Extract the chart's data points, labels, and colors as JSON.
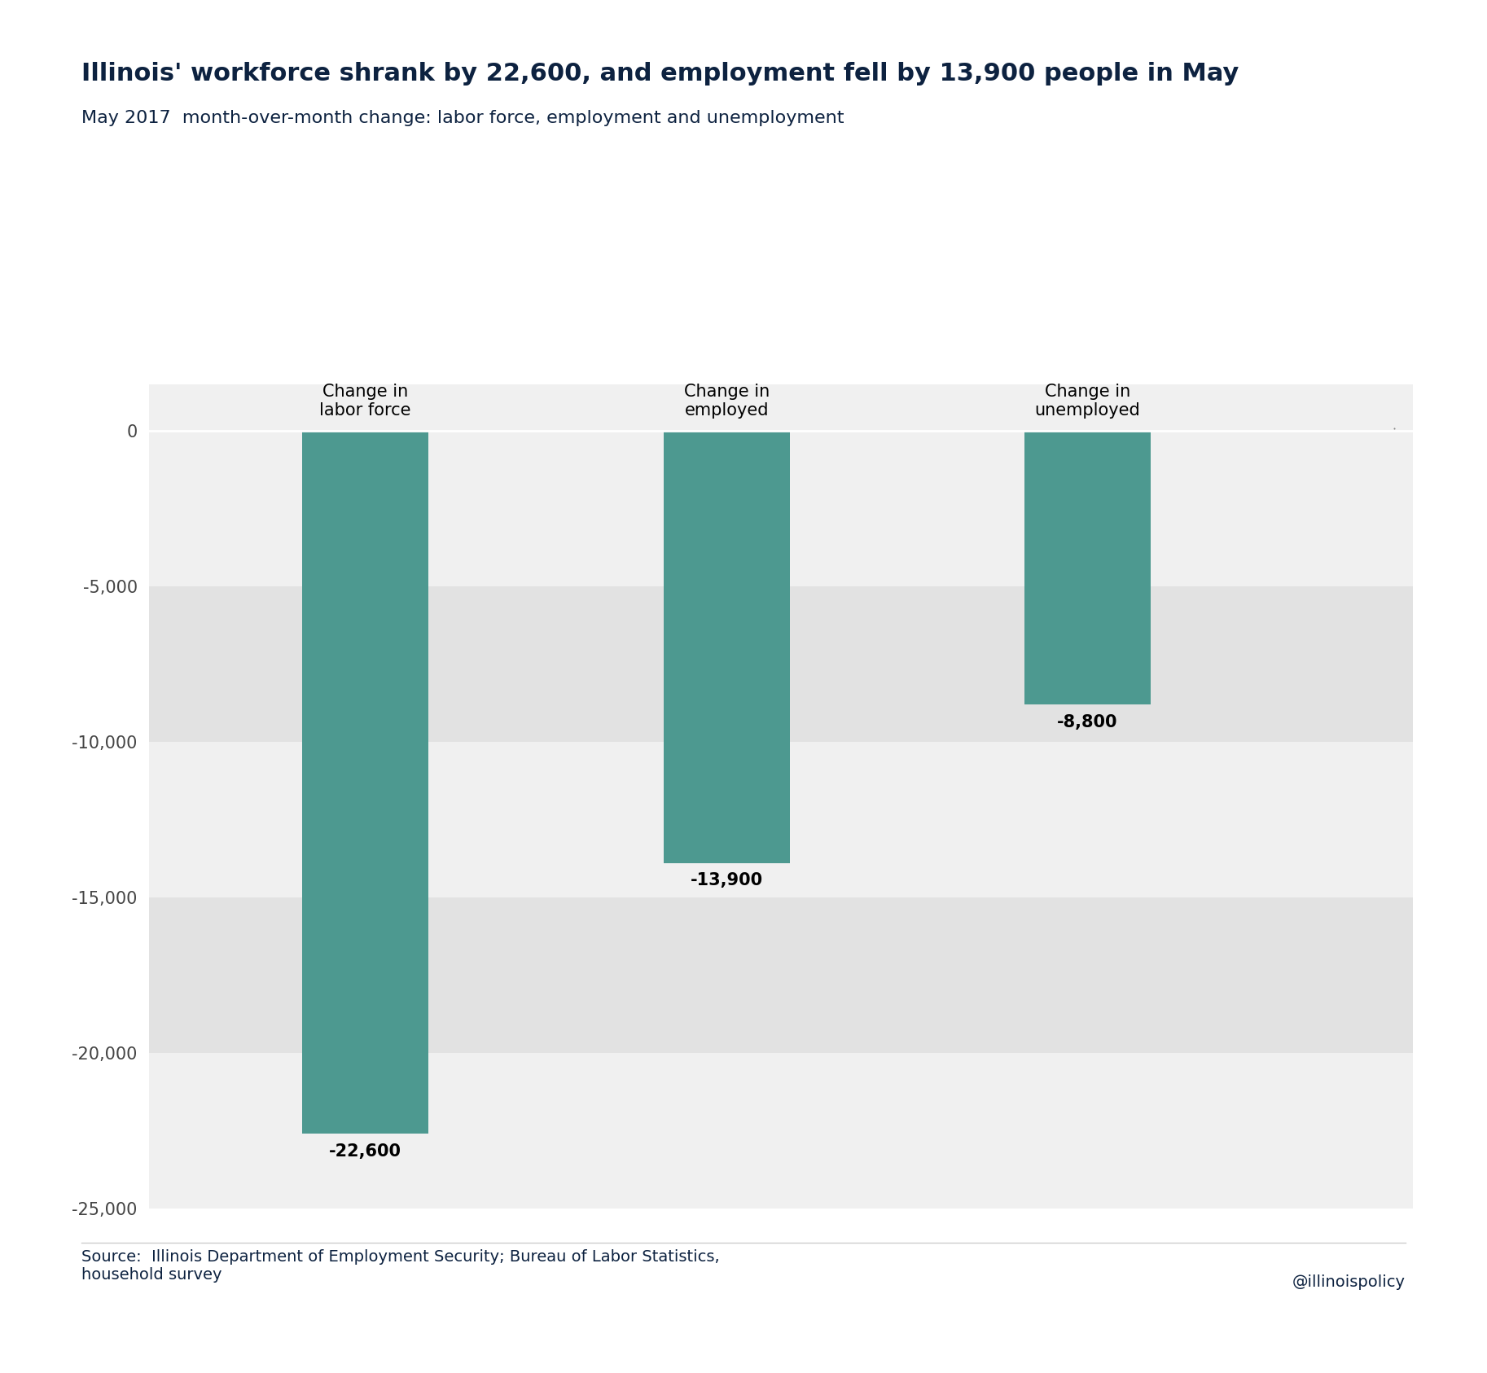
{
  "title": "Illinois' workforce shrank by 22,600, and employment fell by 13,900 people in May",
  "subtitle": "May 2017  month-over-month change: labor force, employment and unemployment",
  "categories": [
    "Change in\nlabor force",
    "Change in\nemployed",
    "Change in\nunemployed"
  ],
  "values": [
    -22600,
    -13900,
    -8800
  ],
  "bar_color": "#4d9990",
  "bar_labels": [
    "-22,600",
    "-13,900",
    "-8,800"
  ],
  "ylim": [
    -25000,
    0
  ],
  "yticks": [
    0,
    -5000,
    -10000,
    -15000,
    -20000,
    -25000
  ],
  "ytick_labels": [
    "0",
    "-5,000",
    "-10,000",
    "-15,000",
    "-20,000",
    "-25,000"
  ],
  "title_color": "#0d2240",
  "subtitle_color": "#0d2240",
  "source_text": "Source:  Illinois Department of Employment Security; Bureau of Labor Statistics,\nhousehold survey",
  "credit_text": "@illinoispolicy",
  "background_color": "#ffffff",
  "plot_bg_color": "#f0f0f0",
  "stripe_color_dark": "#e2e2e2",
  "bar_width": 0.35,
  "title_fontsize": 22,
  "subtitle_fontsize": 16,
  "label_fontsize": 15,
  "tick_fontsize": 15,
  "source_fontsize": 14,
  "cat_label_fontsize": 15
}
